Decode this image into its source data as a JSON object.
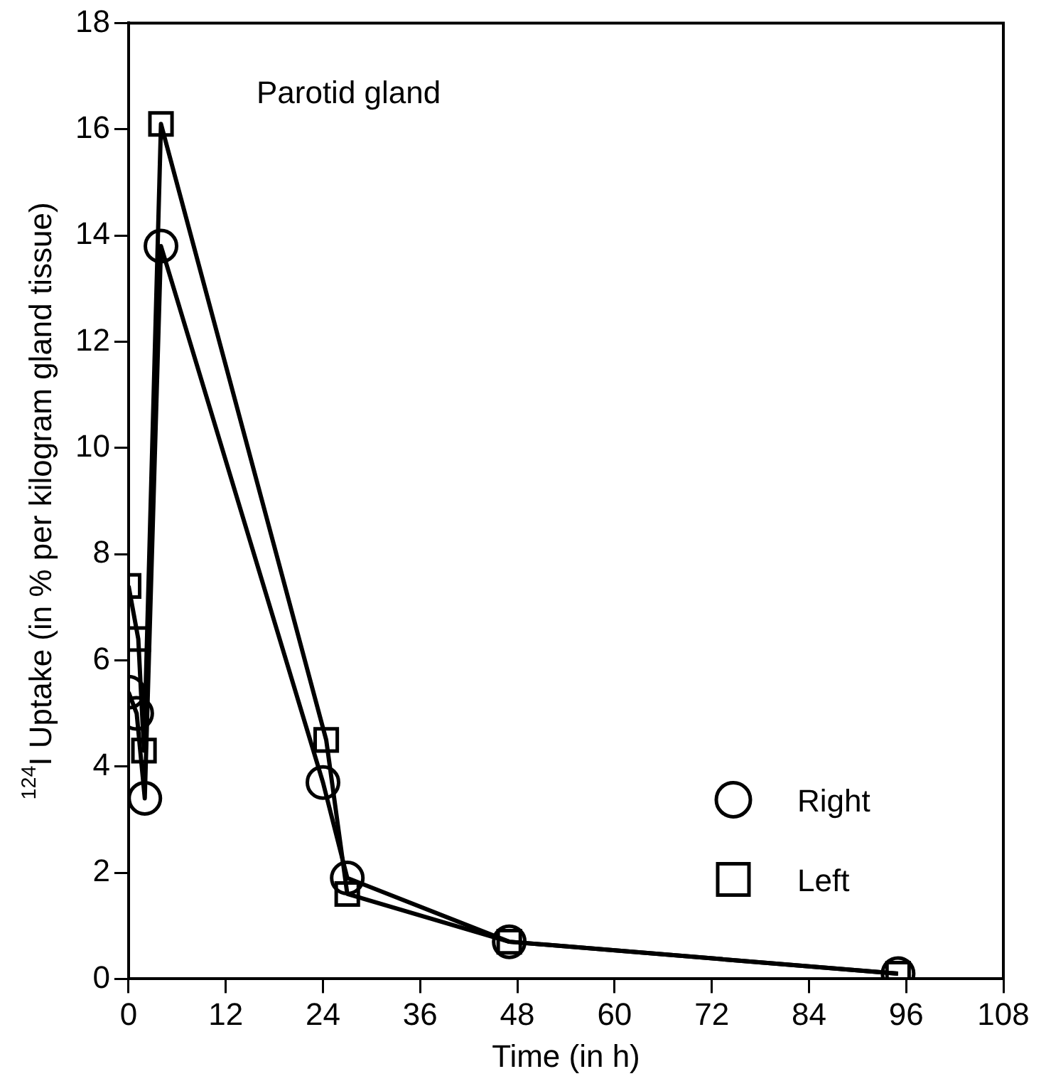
{
  "chart_data": {
    "type": "line",
    "xlabel": "Time (in h)",
    "ylabel": "$^{124}$I Uptake (in % per kilogram gland tissue)",
    "annotations": [
      "Parotid gland"
    ],
    "x": [
      0,
      1,
      2,
      4,
      24,
      27,
      47,
      95
    ],
    "series": [
      {
        "name": "Right",
        "color": "#000000",
        "marker": "circle",
        "values": [
          5.4,
          5.0,
          3.4,
          13.8,
          3.7,
          1.9,
          0.7,
          0.1
        ]
      },
      {
        "name": "Left",
        "color": "#000000",
        "marker": "square",
        "x": [
          0,
          1.2,
          1.9,
          4,
          24.4,
          27,
          47,
          95
        ],
        "values": [
          7.4,
          6.4,
          4.3,
          16.1,
          4.5,
          1.6,
          0.7,
          0.1
        ]
      }
    ],
    "xlim": [
      0,
      108
    ],
    "xticks": [
      0,
      12,
      24,
      36,
      48,
      60,
      72,
      84,
      96,
      108
    ],
    "ylim": [
      0,
      18
    ],
    "yticks": [
      0,
      2,
      4,
      6,
      8,
      10,
      12,
      14,
      16,
      18
    ],
    "grid": false,
    "legend": "bottom right",
    "line_style": "solid"
  }
}
